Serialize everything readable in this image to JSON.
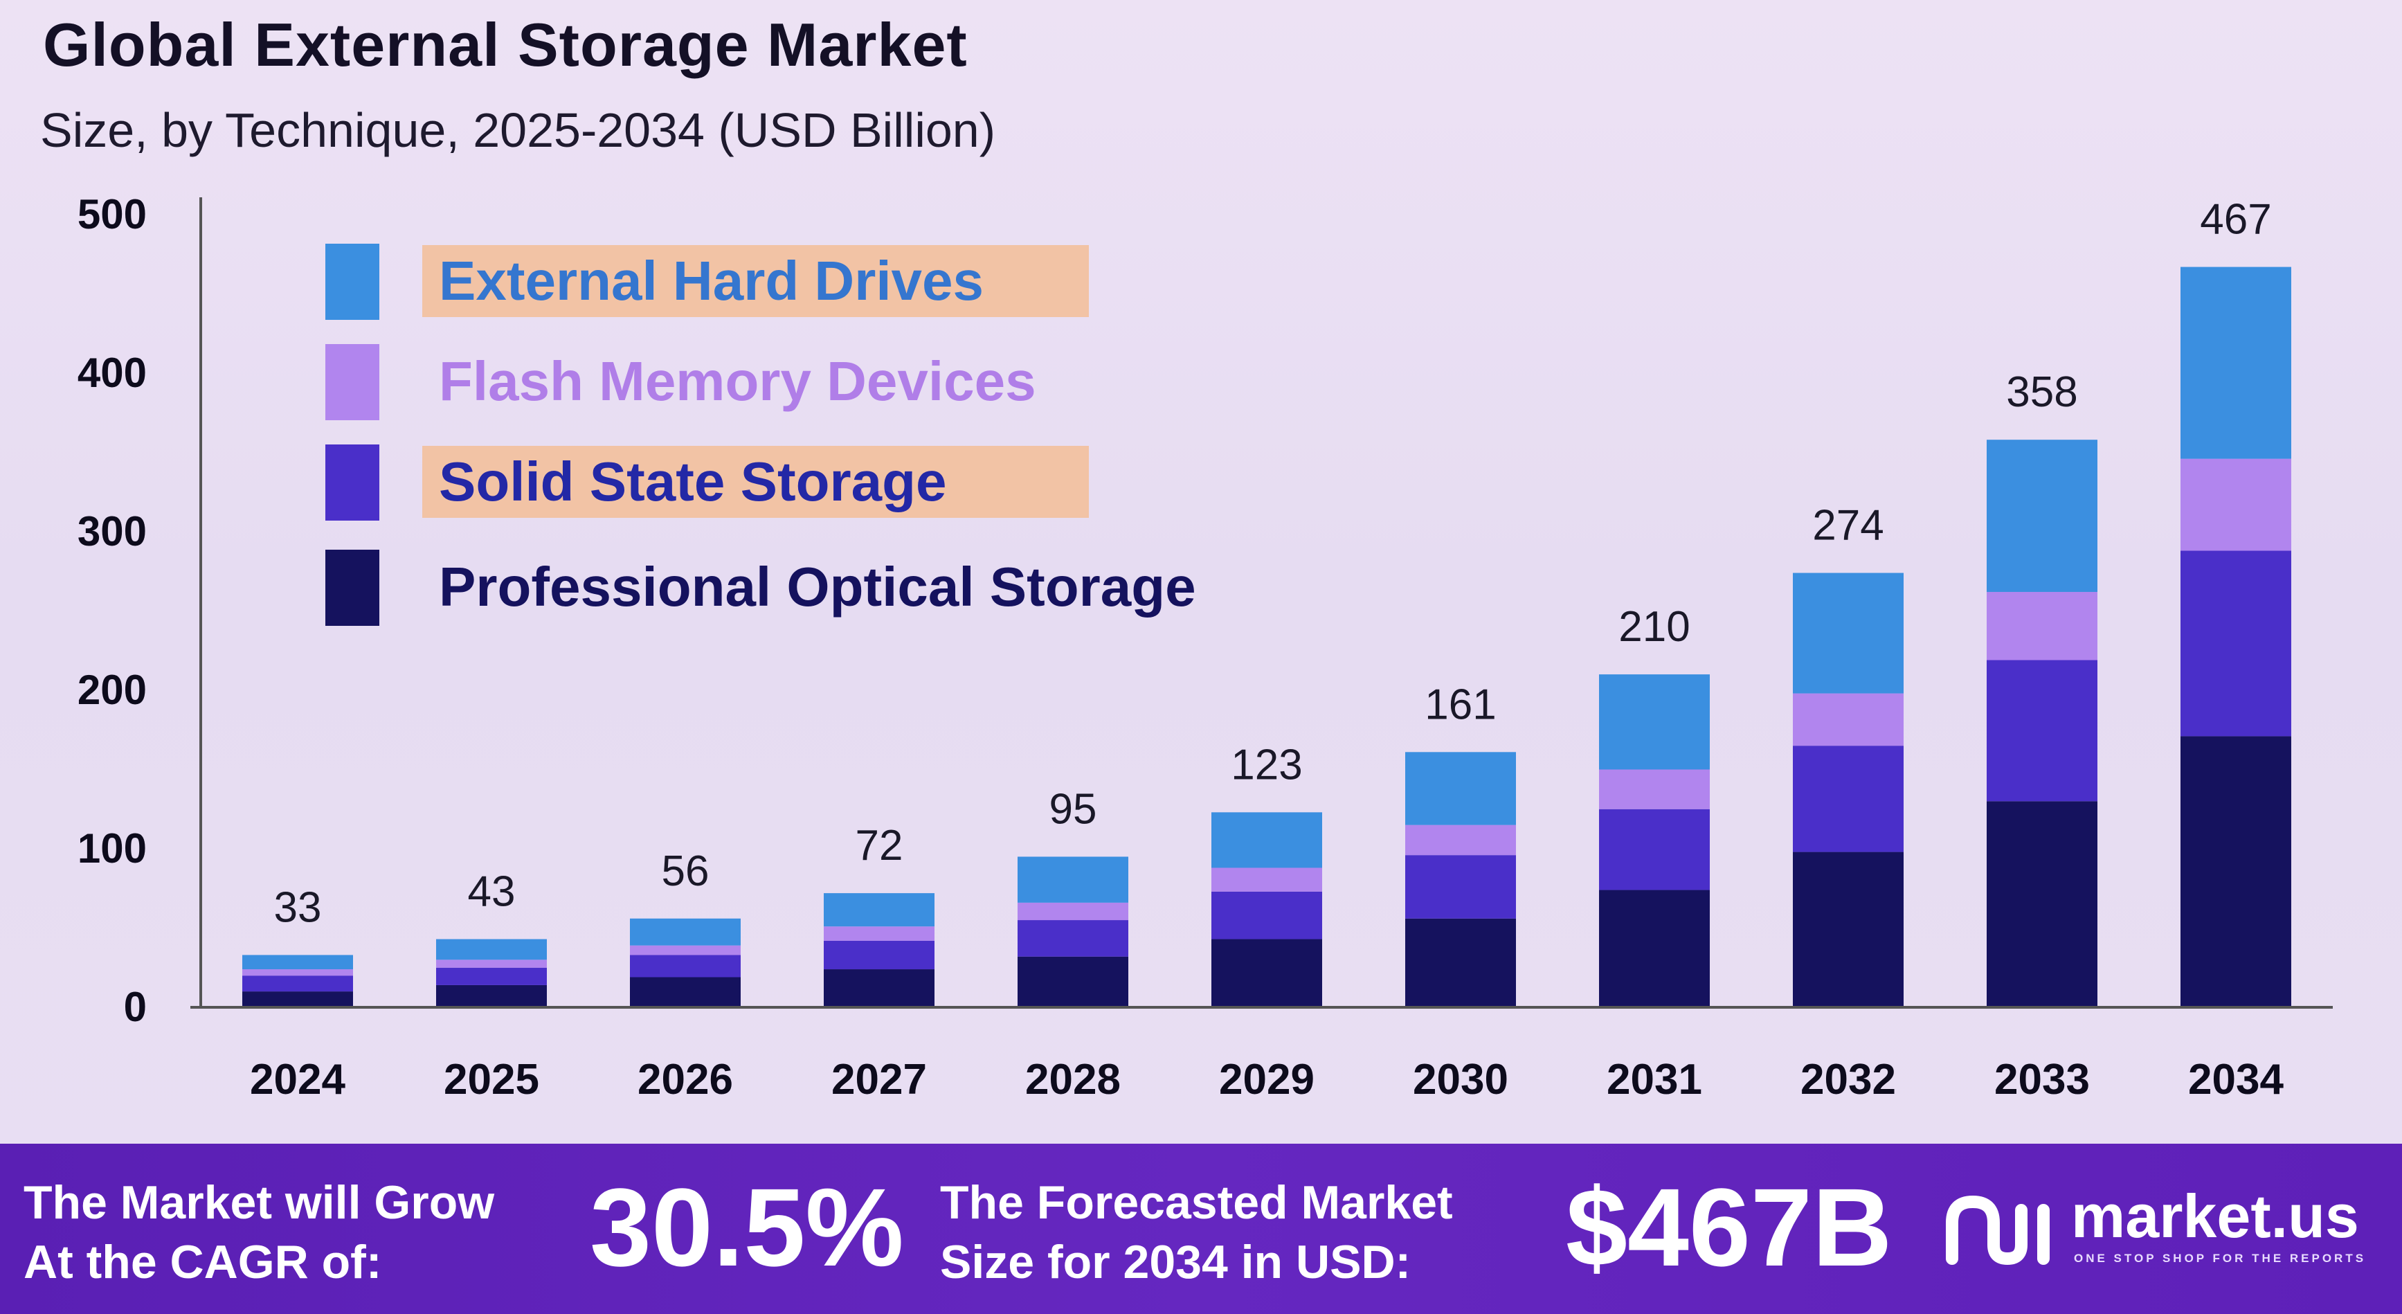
{
  "chart_data": {
    "type": "bar",
    "stacked": true,
    "title": "Global External Storage Market",
    "subtitle": "Size, by Technique, 2025-2034 (USD Billion)",
    "xlabel": "",
    "ylabel": "",
    "ylim": [
      0,
      500
    ],
    "yticks": [
      0,
      100,
      200,
      300,
      400,
      500
    ],
    "categories": [
      "2024",
      "2025",
      "2026",
      "2027",
      "2028",
      "2029",
      "2030",
      "2031",
      "2032",
      "2033",
      "2034"
    ],
    "totals": [
      33,
      43,
      56,
      72,
      95,
      123,
      161,
      210,
      274,
      358,
      467
    ],
    "series": [
      {
        "name": "Professional Optical Storage",
        "color": "#15125e",
        "values": [
          10,
          14,
          19,
          24,
          32,
          43,
          56,
          74,
          98,
          130,
          171
        ]
      },
      {
        "name": "Solid State Storage",
        "color": "#4a2fc9",
        "values": [
          10,
          11,
          14,
          18,
          23,
          30,
          40,
          51,
          67,
          89,
          117
        ]
      },
      {
        "name": "Flash Memory Devices",
        "color": "#b185ee",
        "values": [
          4,
          5,
          6,
          9,
          11,
          15,
          19,
          25,
          33,
          43,
          58
        ]
      },
      {
        "name": "External Hard Drives",
        "color": "#3b8fe0",
        "values": [
          9,
          13,
          17,
          21,
          29,
          35,
          46,
          60,
          76,
          96,
          121
        ]
      }
    ],
    "legend": "top-left"
  },
  "legend_items": [
    {
      "label": "External Hard Drives",
      "color": "#3b8fe0",
      "text_color": "#3576cf"
    },
    {
      "label": "Flash Memory Devices",
      "color": "#b185ee",
      "text_color": "#b07ee8"
    },
    {
      "label": "Solid State Storage",
      "color": "#4a2fc9",
      "text_color": "#2328a6"
    },
    {
      "label": "Professional Optical Storage",
      "color": "#15125e",
      "text_color": "#15125e"
    }
  ],
  "footer": {
    "cagr_text_line1": "The Market will Grow",
    "cagr_text_line2": "At the CAGR of:",
    "cagr_value": "30.5%",
    "forecast_text_line1": "The Forecasted Market",
    "forecast_text_line2": "Size for 2034 in USD:",
    "forecast_value": "$467B",
    "logo_text": "market.us",
    "logo_tagline": "ONE STOP SHOP FOR THE REPORTS",
    "logo_icon": "market-us-logo-icon"
  },
  "colors": {
    "footer_bg": "#6527c0",
    "axis": "#555555",
    "legend_highlight": "#f2c3a5"
  }
}
